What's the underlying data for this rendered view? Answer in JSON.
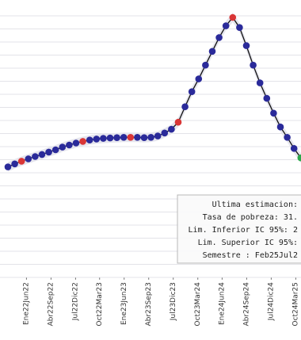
{
  "chart_data": {
    "type": "line",
    "title": "",
    "xlabel": "",
    "ylabel": "",
    "grid": true,
    "x_tick_labels": [
      "Ene22Jun22",
      "Abr22Sep22",
      "Jul22Dic22",
      "Oct22Mar23",
      "Ene23Jun23",
      "Abr23Sep23",
      "Jul23Dic23",
      "Oct23Mar24",
      "Ene24Jun24",
      "Abr24Sep24",
      "Jul24Dic24",
      "Oct24Mar25"
    ],
    "values": [
      40.5,
      41.4,
      42.2,
      42.9,
      43.6,
      44.2,
      44.9,
      45.6,
      46.4,
      47.0,
      47.6,
      48.1,
      48.5,
      48.8,
      49.0,
      49.1,
      49.2,
      49.3,
      49.3,
      49.3,
      49.2,
      49.3,
      49.7,
      50.6,
      51.7,
      53.8,
      58.4,
      62.9,
      66.7,
      70.8,
      74.9,
      79.0,
      82.5,
      85.0,
      82.0,
      76.6,
      70.8,
      65.5,
      60.9,
      56.5,
      52.4,
      49.3,
      46.0,
      43.2,
      40.3
    ],
    "point_colors": [
      "#2a2a9a",
      "#2a2a9a",
      "#d93636",
      "#2a2a9a",
      "#2a2a9a",
      "#2a2a9a",
      "#2a2a9a",
      "#2a2a9a",
      "#2a2a9a",
      "#2a2a9a",
      "#2a2a9a",
      "#d93636",
      "#2a2a9a",
      "#2a2a9a",
      "#2a2a9a",
      "#2a2a9a",
      "#2a2a9a",
      "#2a2a9a",
      "#d93636",
      "#2a2a9a",
      "#2a2a9a",
      "#2a2a9a",
      "#2a2a9a",
      "#2a2a9a",
      "#2a2a9a",
      "#d93636",
      "#2a2a9a",
      "#2a2a9a",
      "#2a2a9a",
      "#2a2a9a",
      "#2a2a9a",
      "#2a2a9a",
      "#2a2a9a",
      "#d93636",
      "#2a2a9a",
      "#2a2a9a",
      "#2a2a9a",
      "#2a2a9a",
      "#2a2a9a",
      "#2a2a9a",
      "#2a2a9a",
      "#2a2a9a",
      "#2a2a9a",
      "#2aa84a",
      "#2aa84a"
    ],
    "line_color": "#111111",
    "band_color": "#e6e6ee",
    "grid_color": "#e3e3e8"
  },
  "tooltip": {
    "lines": [
      "Ultima estimacion:",
      "Tasa de pobreza: 31.",
      "Lim. Inferior IC 95%: 2",
      "Lim. Superior IC 95%:",
      "Semestre : Feb25Jul2"
    ]
  }
}
